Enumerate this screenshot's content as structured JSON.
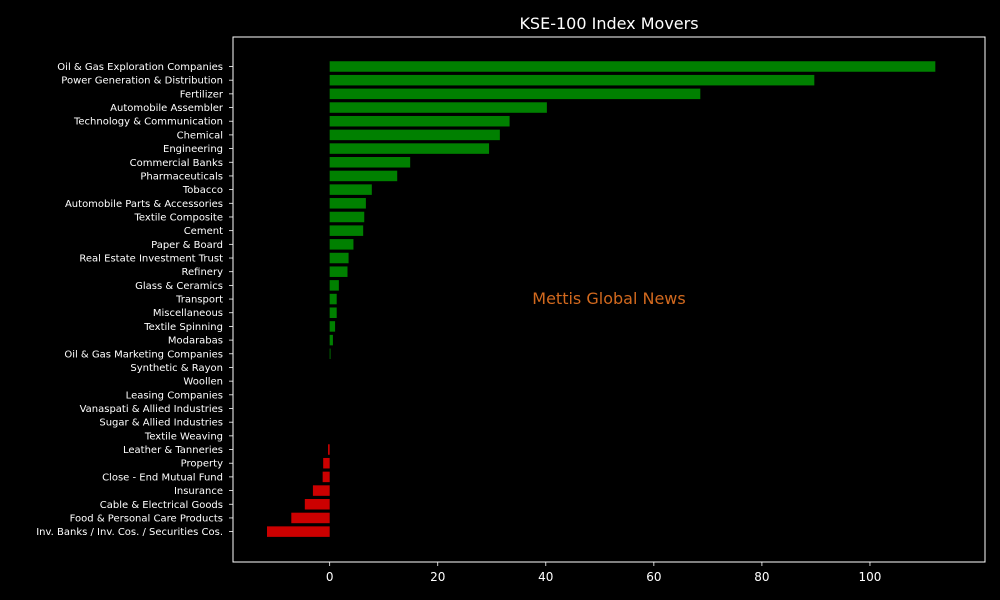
{
  "chart_data": {
    "type": "bar",
    "orientation": "horizontal",
    "title": "KSE-100 Index Movers",
    "xlabel": "",
    "ylabel": "",
    "xlim": [
      -11.6,
      115
    ],
    "x_ticks": [
      0,
      20,
      40,
      60,
      80,
      100
    ],
    "grid": false,
    "watermark": "Mettis Global News",
    "colors": {
      "background": "#000000",
      "positive": "#008000",
      "negative": "#cc0000",
      "watermark": "#d2691e",
      "text": "#ffffff"
    },
    "categories": [
      "Oil & Gas Exploration Companies",
      "Power Generation & Distribution",
      "Fertilizer",
      "Automobile Assembler",
      "Technology & Communication",
      "Chemical",
      "Engineering",
      "Commercial Banks",
      "Pharmaceuticals",
      "Tobacco",
      "Automobile Parts & Accessories",
      "Textile Composite",
      "Cement",
      "Paper & Board",
      "Real Estate Investment Trust",
      "Refinery",
      "Glass & Ceramics",
      "Transport",
      "Miscellaneous",
      "Textile Spinning",
      "Modarabas",
      "Oil & Gas Marketing Companies",
      "Synthetic & Rayon",
      "Woollen",
      "Leasing Companies",
      "Vanaspati & Allied Industries",
      "Sugar & Allied Industries",
      "Textile Weaving",
      "Leather & Tanneries",
      "Property",
      "Close - End Mutual Fund",
      "Insurance",
      "Cable & Electrical Goods",
      "Food & Personal Care Products",
      "Inv. Banks / Inv. Cos. / Securities Cos."
    ],
    "values": [
      112.1,
      89.7,
      68.6,
      40.2,
      33.3,
      31.5,
      29.5,
      14.9,
      12.5,
      7.8,
      6.7,
      6.4,
      6.2,
      4.4,
      3.5,
      3.3,
      1.7,
      1.3,
      1.3,
      1.0,
      0.6,
      0.15,
      0,
      0,
      0,
      0,
      0,
      0,
      -0.3,
      -1.2,
      -1.3,
      -3.1,
      -4.6,
      -7.1,
      -11.6
    ]
  }
}
